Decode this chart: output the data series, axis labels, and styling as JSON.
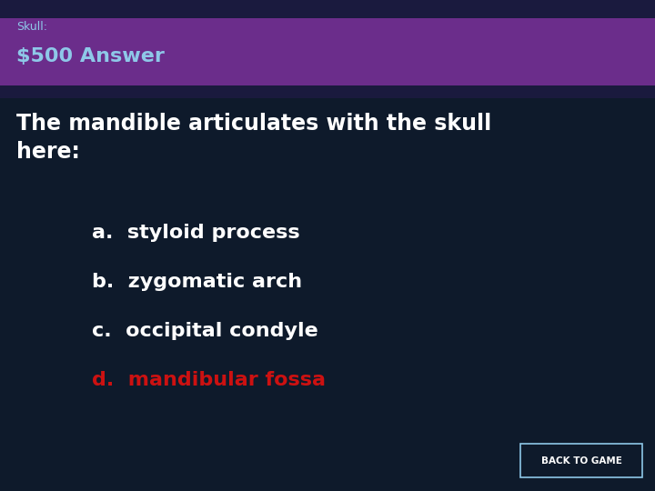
{
  "bg_color": "#0e1a2b",
  "header_bg_color": "#6b2d8b",
  "header_top_color": "#1a1a3e",
  "header_bottom_color": "#1a1a3e",
  "header_label": "Skull:",
  "header_title": "$500 Answer",
  "header_label_color": "#8ec8e8",
  "header_title_color": "#8ec8e8",
  "header_label_fontsize": 9,
  "header_title_fontsize": 16,
  "question": "The mandible articulates with the skull\nhere:",
  "question_color": "#ffffff",
  "question_fontsize": 17,
  "options": [
    {
      "text": "a.  styloid process",
      "color": "#ffffff"
    },
    {
      "text": "b.  zygomatic arch",
      "color": "#ffffff"
    },
    {
      "text": "c.  occipital condyle",
      "color": "#ffffff"
    },
    {
      "text": "d.  mandibular fossa",
      "color": "#cc1111"
    }
  ],
  "option_fontsize": 16,
  "button_text": "BACK TO GAME",
  "button_bg": "#0e1a2b",
  "button_border": "#8ec8e8",
  "button_text_color": "#ffffff",
  "button_fontsize": 7.5
}
